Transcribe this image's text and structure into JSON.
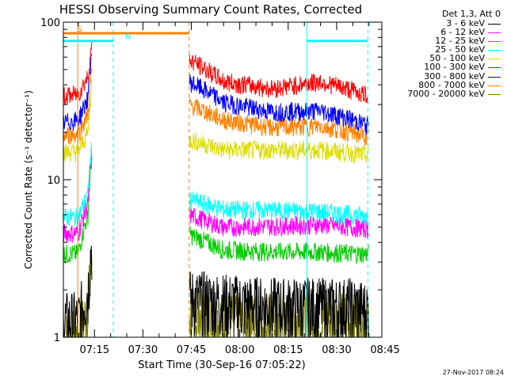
{
  "chart_data": {
    "type": "line",
    "title": "HESSI Observing Summary Count Rates, Corrected",
    "xlabel": "Start Time (30-Sep-16 07:05:22)",
    "ylabel": "Corrected Count Rate (s⁻¹ detector⁻¹)",
    "ylog": true,
    "xlim": [
      "07:05:22",
      "08:44:00"
    ],
    "ylim": [
      1,
      100
    ],
    "xticks": [
      "07:15",
      "07:30",
      "07:45",
      "08:00",
      "08:15",
      "08:30",
      "08:45"
    ],
    "yticks": [
      "1",
      "10",
      "100"
    ],
    "legend_title": "Det 1,3, Att 0",
    "legend_placement": "top-right",
    "data_gap": [
      "07:14:10",
      "07:44:20"
    ],
    "series": [
      {
        "name": "3 - 6 keV",
        "color": "#000000",
        "x": [
          "07:05:22",
          "07:10:00",
          "07:13:00",
          "07:14:10",
          "07:44:20",
          "07:55:00",
          "08:10:00",
          "08:25:00",
          "08:35:00",
          "08:40:00"
        ],
        "y": [
          1.3,
          1.3,
          2.0,
          4.0,
          1.8,
          1.7,
          1.6,
          1.6,
          1.6,
          1.5
        ]
      },
      {
        "name": "6 - 12 keV",
        "color": "#ff00ff",
        "x": [
          "07:05:22",
          "07:10:00",
          "07:13:00",
          "07:14:10",
          "07:44:20",
          "07:55:00",
          "08:10:00",
          "08:25:00",
          "08:35:00",
          "08:40:00"
        ],
        "y": [
          4.6,
          4.6,
          7.0,
          15.0,
          6.0,
          5.0,
          5.1,
          5.2,
          5.0,
          4.9
        ]
      },
      {
        "name": "12 - 25 keV",
        "color": "#00cc00",
        "x": [
          "07:05:22",
          "07:10:00",
          "07:13:00",
          "07:14:10",
          "07:44:20",
          "07:55:00",
          "08:10:00",
          "08:25:00",
          "08:35:00",
          "08:40:00"
        ],
        "y": [
          3.4,
          3.4,
          6.0,
          14.0,
          4.5,
          3.6,
          3.5,
          3.5,
          3.4,
          3.4
        ]
      },
      {
        "name": "25 - 50 keV",
        "color": "#00ffff",
        "x": [
          "07:05:22",
          "07:10:00",
          "07:13:00",
          "07:14:10",
          "07:44:20",
          "07:55:00",
          "08:10:00",
          "08:25:00",
          "08:35:00",
          "08:40:00"
        ],
        "y": [
          5.8,
          5.8,
          8.0,
          16.0,
          7.5,
          6.5,
          6.4,
          6.3,
          6.0,
          5.9
        ]
      },
      {
        "name": "50 - 100 keV",
        "color": "#dddd00",
        "x": [
          "07:05:22",
          "07:10:00",
          "07:13:00",
          "07:14:10",
          "07:44:20",
          "07:55:00",
          "08:10:00",
          "08:25:00",
          "08:35:00",
          "08:40:00"
        ],
        "y": [
          15.0,
          15.0,
          20.0,
          40.0,
          18.0,
          15.5,
          15.5,
          15.5,
          14.8,
          14.2
        ]
      },
      {
        "name": "100 - 300 keV",
        "color": "#ff0000",
        "x": [
          "07:05:22",
          "07:10:00",
          "07:13:00",
          "07:14:10",
          "07:44:20",
          "07:55:00",
          "08:10:00",
          "08:25:00",
          "08:35:00",
          "08:40:00"
        ],
        "y": [
          34.0,
          35.0,
          45.0,
          70.0,
          58.0,
          42.0,
          38.0,
          42.0,
          37.0,
          34.0
        ]
      },
      {
        "name": "300 - 800 keV",
        "color": "#0000ff",
        "x": [
          "07:05:22",
          "07:10:00",
          "07:13:00",
          "07:14:10",
          "07:44:20",
          "07:55:00",
          "08:10:00",
          "08:25:00",
          "08:35:00",
          "08:40:00"
        ],
        "y": [
          23.0,
          24.0,
          33.0,
          65.0,
          42.0,
          31.0,
          27.0,
          27.5,
          24.0,
          22.0
        ]
      },
      {
        "name": "800 - 7000 keV",
        "color": "#ff8000",
        "x": [
          "07:05:22",
          "07:10:00",
          "07:13:00",
          "07:14:10",
          "07:44:20",
          "07:55:00",
          "08:10:00",
          "08:25:00",
          "08:35:00",
          "08:40:00"
        ],
        "y": [
          19.0,
          19.5,
          26.0,
          50.0,
          30.0,
          24.0,
          21.5,
          22.0,
          20.0,
          18.5
        ]
      },
      {
        "name": "7000 - 20000 keV",
        "color": "#808000",
        "x": [
          "07:05:22",
          "07:10:00",
          "07:13:00",
          "07:14:10",
          "07:44:20",
          "07:55:00",
          "08:10:00",
          "08:25:00",
          "08:35:00",
          "08:40:00"
        ],
        "y": [
          1.0,
          1.0,
          1.5,
          3.0,
          1.4,
          1.3,
          1.3,
          1.3,
          1.3,
          1.2
        ]
      }
    ],
    "flags": [
      {
        "label": "S",
        "color": "#ff8000",
        "level": 85,
        "spans": [
          [
            "07:05:22",
            "07:44:20"
          ]
        ]
      },
      {
        "label": "N",
        "color": "#00ffff",
        "level": 76,
        "spans": [
          [
            "07:05:22",
            "07:20:50"
          ],
          [
            "08:20:50",
            "08:39:40"
          ]
        ]
      }
    ],
    "markers": [
      {
        "color": "#ff8000",
        "style": "dashed",
        "x": "07:44:20"
      },
      {
        "color": "#ff8000",
        "style": "solid",
        "x": "07:09:50"
      },
      {
        "color": "#00ffff",
        "style": "dashed",
        "x": "07:20:50"
      },
      {
        "color": "#00ffff",
        "style": "dashed",
        "x": "08:39:40"
      },
      {
        "color": "#00ffff",
        "style": "solid",
        "x": "08:20:50"
      }
    ]
  },
  "footer_timestamp": "27-Nov-2017 08:24"
}
